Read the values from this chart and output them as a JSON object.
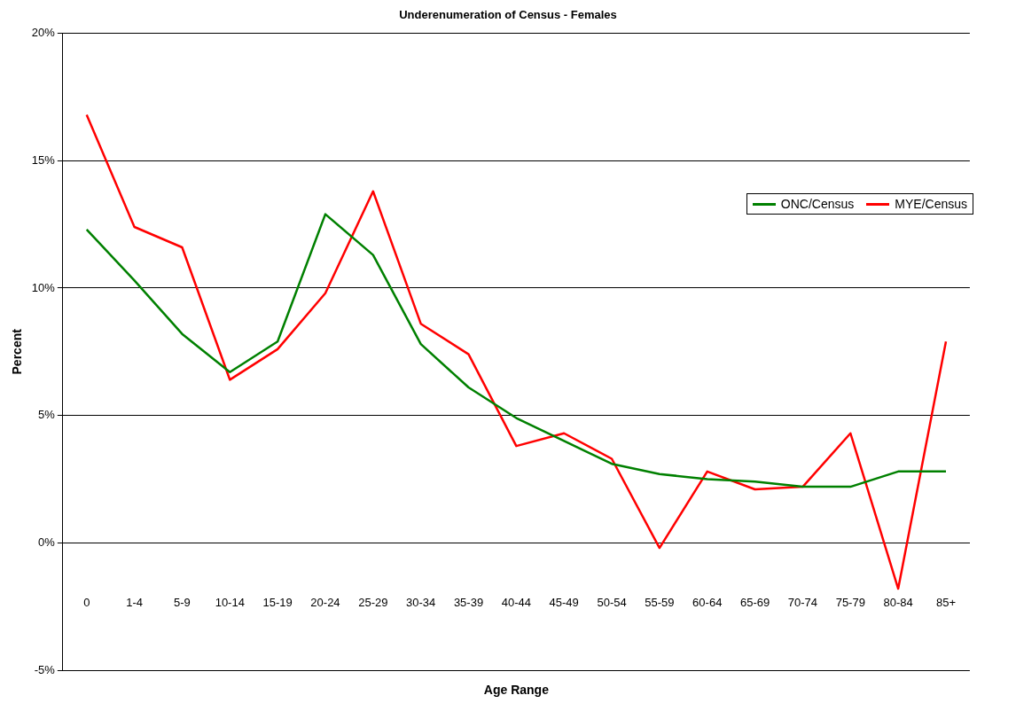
{
  "chart_data": {
    "type": "line",
    "title": "Underenumeration of Census - Females",
    "xlabel": "Age Range",
    "ylabel": "Percent",
    "categories": [
      "0",
      "1-4",
      "5-9",
      "10-14",
      "15-19",
      "20-24",
      "25-29",
      "30-34",
      "35-39",
      "40-44",
      "45-49",
      "50-54",
      "55-59",
      "60-64",
      "65-69",
      "70-74",
      "75-79",
      "80-84",
      "85+"
    ],
    "series": [
      {
        "name": "ONC/Census",
        "color": "#008000",
        "values": [
          12.3,
          10.3,
          8.2,
          6.7,
          7.9,
          12.9,
          11.3,
          7.8,
          6.1,
          4.9,
          4.0,
          3.1,
          2.7,
          2.5,
          2.4,
          2.2,
          2.2,
          2.8,
          2.8
        ]
      },
      {
        "name": "MYE/Census",
        "color": "#ff0000",
        "values": [
          16.8,
          12.4,
          11.6,
          6.4,
          7.6,
          9.8,
          13.8,
          8.6,
          7.4,
          3.8,
          4.3,
          3.3,
          -0.2,
          2.8,
          2.1,
          2.2,
          4.3,
          -1.8,
          7.9
        ]
      }
    ],
    "ylim": [
      -5,
      20
    ],
    "yticks": [
      {
        "value": -5,
        "label": "-5%"
      },
      {
        "value": 0,
        "label": "0%"
      },
      {
        "value": 5,
        "label": "5%"
      },
      {
        "value": 10,
        "label": "10%"
      },
      {
        "value": 15,
        "label": "15%"
      },
      {
        "value": 20,
        "label": "20%"
      }
    ],
    "grid": "y",
    "legend": "top right",
    "marker": "none",
    "line_style": "solid"
  }
}
